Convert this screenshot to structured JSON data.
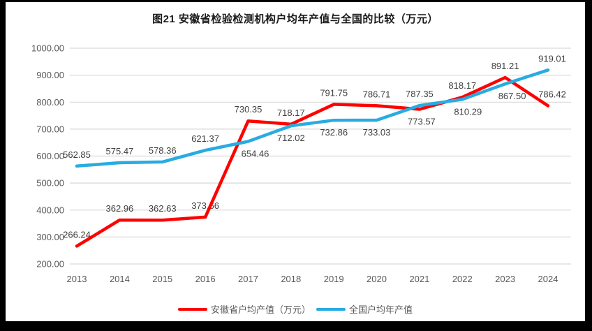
{
  "colors": {
    "frame": "#000000",
    "background": "#ffffff",
    "grid": "#d9d9d9",
    "axis_text": "#595959",
    "label_text": "#404040",
    "anhui_red": "#ff0000",
    "national_blue": "#29abe2"
  },
  "chart_data": {
    "type": "line",
    "title": "图21 安徽省检验检测机构户均年产值与全国的比较（万元）",
    "categories": [
      "2013",
      "2014",
      "2015",
      "2016",
      "2017",
      "2018",
      "2019",
      "2020",
      "2021",
      "2022",
      "2023",
      "2024"
    ],
    "ylim": [
      200,
      1000
    ],
    "grid": true,
    "legend_position": "bottom",
    "y_ticks": [
      {
        "value": 1000,
        "label": "1000.00"
      },
      {
        "value": 900,
        "label": "900.00"
      },
      {
        "value": 800,
        "label": "800.00"
      },
      {
        "value": 700,
        "label": "700.00"
      },
      {
        "value": 600,
        "label": "600.00"
      },
      {
        "value": 500,
        "label": "500.00"
      },
      {
        "value": 400,
        "label": "400.00"
      },
      {
        "value": 300,
        "label": "300.00"
      },
      {
        "value": 200,
        "label": "200.00"
      }
    ],
    "series": [
      {
        "name": "安徽省户均产值（万元）",
        "color": "#ff0000",
        "values": [
          266.24,
          362.96,
          362.63,
          373.66,
          730.35,
          718.17,
          791.75,
          786.71,
          773.57,
          818.17,
          891.21,
          786.42
        ],
        "label_pos": [
          "above",
          "above",
          "above",
          "above",
          "above",
          "above",
          "above",
          "above",
          "below",
          "above",
          "above",
          "above"
        ],
        "label_dx": [
          0,
          0,
          0,
          0,
          0,
          0,
          0,
          0,
          3,
          0,
          0,
          6
        ]
      },
      {
        "name": "全国户均年产值",
        "color": "#29abe2",
        "values": [
          562.85,
          575.47,
          578.36,
          621.37,
          654.46,
          712.02,
          732.86,
          733.03,
          787.35,
          810.29,
          867.5,
          919.01
        ],
        "label_pos": [
          "above",
          "above",
          "above",
          "above",
          "below",
          "below",
          "below",
          "below",
          "above",
          "below",
          "below",
          "above"
        ],
        "label_dx": [
          0,
          0,
          0,
          0,
          10,
          0,
          0,
          0,
          0,
          8,
          10,
          6
        ]
      }
    ]
  }
}
